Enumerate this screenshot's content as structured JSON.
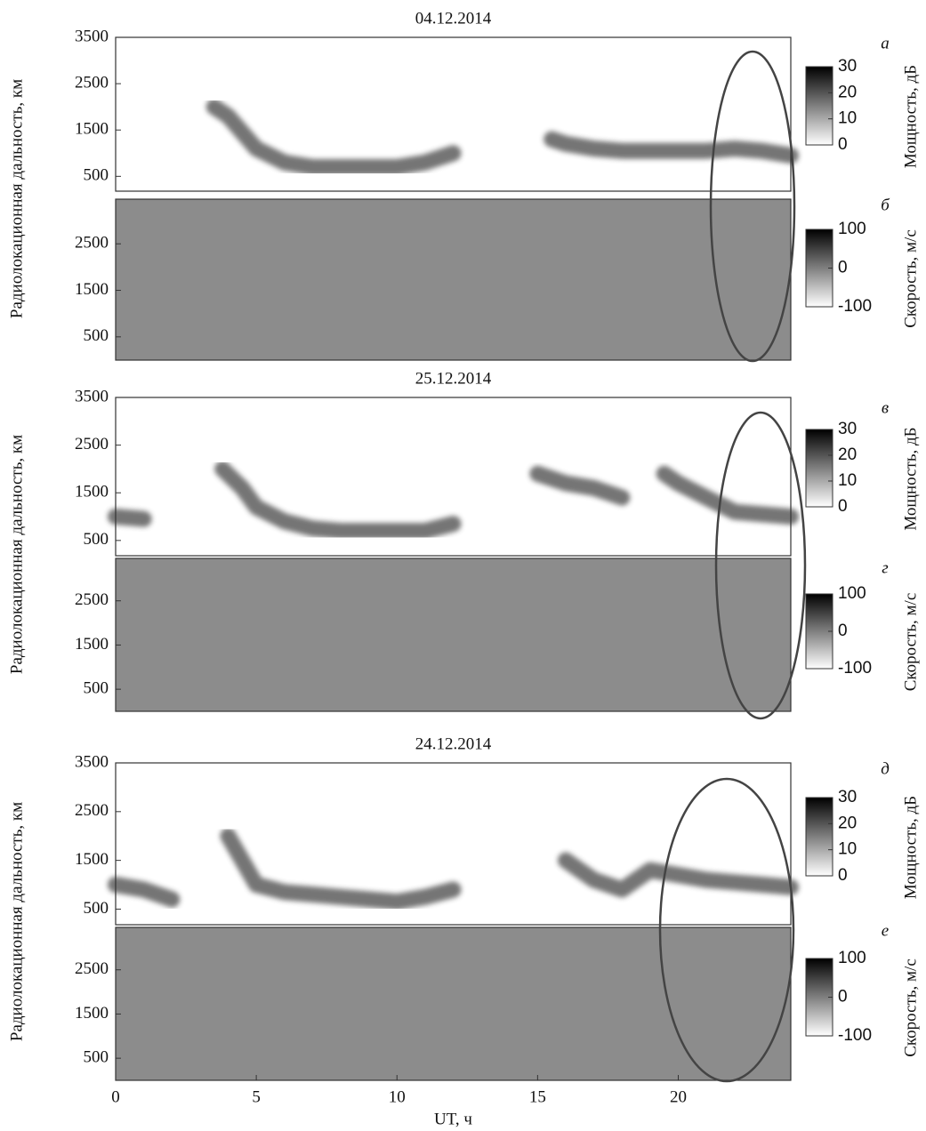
{
  "chart_data": [
    {
      "type": "heatmap",
      "title": "04.12.2014",
      "panel_label": "а",
      "y_label": "Радиолокационная дальность, км",
      "xlim": [
        0,
        24
      ],
      "ylim": [
        180,
        3500
      ],
      "yticks": [
        500,
        1500,
        2500,
        3500
      ],
      "background": "#ffffff",
      "colorbar": {
        "label": "Мощность, дБ",
        "lim": [
          0,
          30
        ],
        "ticks": [
          0,
          10,
          20,
          30
        ]
      },
      "echo": {
        "color": "#3a3a3a",
        "x": [
          3.5,
          4,
          5,
          6,
          7,
          8,
          9,
          10,
          11,
          12,
          13,
          15.5,
          16,
          17,
          18,
          19,
          20,
          21,
          22,
          23,
          24
        ],
        "values": [
          2000,
          1800,
          1100,
          800,
          700,
          700,
          700,
          700,
          800,
          1000,
          null,
          1300,
          1200,
          1100,
          1050,
          1050,
          1050,
          1050,
          1100,
          1050,
          950
        ]
      }
    },
    {
      "type": "heatmap",
      "panel_label": "б",
      "xlim": [
        0,
        24
      ],
      "ylim": [
        0,
        3460
      ],
      "yticks": [
        500,
        1500,
        2500
      ],
      "background": "#8c8c8c",
      "colorbar": {
        "label": "Скорость, м/с",
        "lim": [
          -100,
          100
        ],
        "ticks": [
          -100,
          0,
          100
        ]
      }
    },
    {
      "type": "heatmap",
      "title": "25.12.2014",
      "panel_label": "в",
      "y_label": "Радиолокационная дальность, км",
      "xlim": [
        0,
        24
      ],
      "ylim": [
        180,
        3500
      ],
      "yticks": [
        500,
        1500,
        2500,
        3500
      ],
      "background": "#ffffff",
      "colorbar": {
        "label": "Мощность, дБ",
        "lim": [
          0,
          30
        ],
        "ticks": [
          0,
          10,
          20,
          30
        ]
      },
      "echo": {
        "color": "#3a3a3a",
        "x": [
          0,
          1,
          2,
          3.8,
          4.5,
          5,
          6,
          7,
          8,
          9,
          10,
          11,
          12,
          13,
          15,
          16,
          17,
          18,
          19,
          19.5,
          20,
          21,
          22,
          23,
          24
        ],
        "values": [
          1000,
          950,
          null,
          2000,
          1600,
          1200,
          900,
          750,
          700,
          700,
          700,
          700,
          850,
          null,
          1900,
          1700,
          1600,
          1400,
          null,
          1900,
          1700,
          1400,
          1100,
          1050,
          1000
        ]
      }
    },
    {
      "type": "heatmap",
      "panel_label": "г",
      "xlim": [
        0,
        24
      ],
      "ylim": [
        0,
        3460
      ],
      "yticks": [
        500,
        1500,
        2500
      ],
      "background": "#8c8c8c",
      "colorbar": {
        "label": "Скорость, м/с",
        "lim": [
          -100,
          100
        ],
        "ticks": [
          -100,
          0,
          100
        ]
      }
    },
    {
      "type": "heatmap",
      "title": "24.12.2014",
      "panel_label": "д",
      "y_label": "Радиолокационная дальность, км",
      "xlim": [
        0,
        24
      ],
      "ylim": [
        180,
        3500
      ],
      "yticks": [
        500,
        1500,
        2500,
        3500
      ],
      "background": "#ffffff",
      "colorbar": {
        "label": "Мощность, дБ",
        "lim": [
          0,
          30
        ],
        "ticks": [
          0,
          10,
          20,
          30
        ]
      },
      "echo": {
        "color": "#3a3a3a",
        "x": [
          0,
          1,
          2,
          3,
          4,
          5,
          6,
          7,
          8,
          9,
          10,
          11,
          12,
          13,
          16,
          17,
          18,
          19,
          20,
          21,
          22,
          23,
          24
        ],
        "values": [
          1000,
          900,
          700,
          null,
          2000,
          1000,
          850,
          800,
          750,
          700,
          650,
          750,
          900,
          null,
          1500,
          1100,
          900,
          1300,
          1200,
          1100,
          1050,
          1000,
          950
        ]
      }
    },
    {
      "type": "heatmap",
      "panel_label": "е",
      "x_label": "UT, ч",
      "xlim": [
        0,
        24
      ],
      "ylim": [
        0,
        3460
      ],
      "yticks": [
        500,
        1500,
        2500
      ],
      "xticks": [
        0,
        5,
        10,
        15,
        20
      ],
      "background": "#8c8c8c",
      "colorbar": {
        "label": "Скорость, м/с",
        "lim": [
          -100,
          100
        ],
        "ticks": [
          -100,
          0,
          100
        ]
      }
    }
  ]
}
